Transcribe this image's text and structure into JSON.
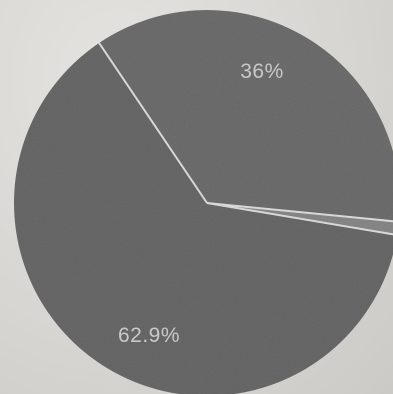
{
  "chart_data": {
    "type": "pie",
    "slices": [
      {
        "label": "36%",
        "value": 36.0,
        "color": "#6f6f6f"
      },
      {
        "label": "",
        "value": 1.1,
        "color": "#8a8a8a"
      },
      {
        "label": "62.9%",
        "value": 62.9,
        "color": "#6a6a6a"
      }
    ],
    "start_angle_deg": -124,
    "legend": "none"
  }
}
